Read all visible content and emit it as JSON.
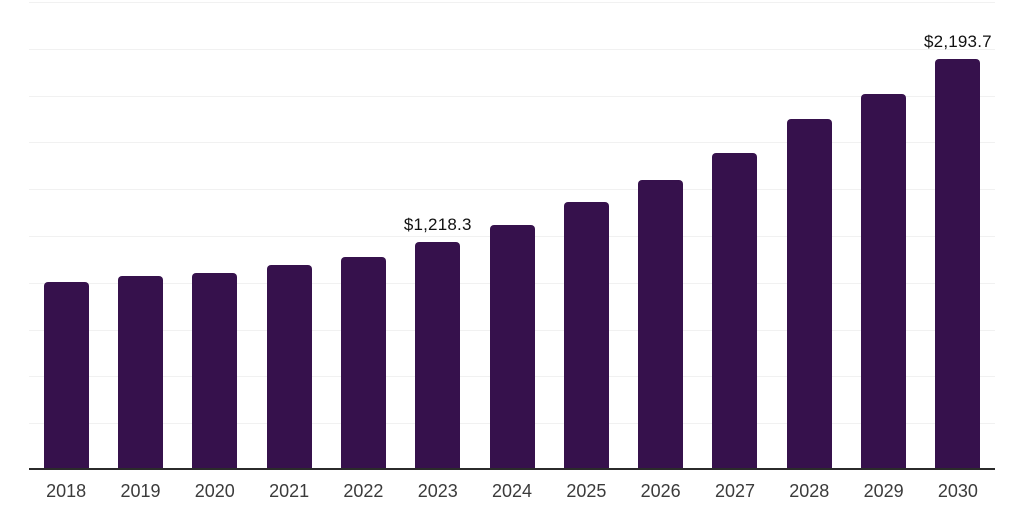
{
  "chart_style": {
    "background_color": "#ffffff",
    "bar_color": "#36114c",
    "grid_color": "#f1f1f1",
    "axis_color": "#2b2b2b",
    "tick_label_color": "#3b3b3b",
    "value_label_color": "#111111"
  },
  "chart_data": {
    "type": "bar",
    "title": "",
    "xlabel": "",
    "ylabel": "",
    "categories": [
      "2018",
      "2019",
      "2020",
      "2021",
      "2022",
      "2023",
      "2024",
      "2025",
      "2026",
      "2027",
      "2028",
      "2029",
      "2030"
    ],
    "values": [
      1005,
      1035,
      1050,
      1093,
      1140,
      1218.3,
      1310,
      1430,
      1552,
      1696,
      1875,
      2010,
      2193.7
    ],
    "value_labels": {
      "2023": "$1,218.3",
      "2030": "$2,193.7"
    },
    "ylim": [
      0,
      2500
    ],
    "gridline_step": 250,
    "grid": "horizontal",
    "legend_position": "none",
    "y_axis_tick_labels_visible": false
  }
}
